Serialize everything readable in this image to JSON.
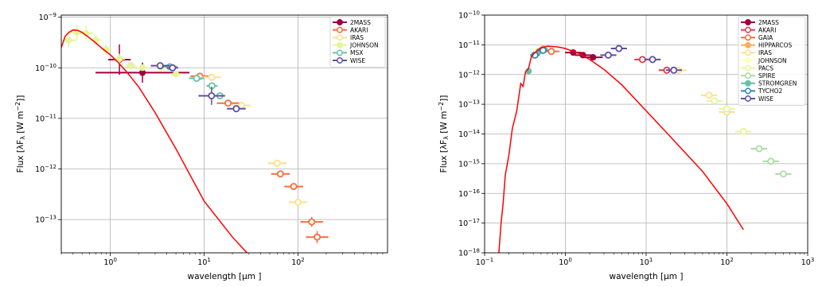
{
  "chart_data": [
    {
      "type": "scatter",
      "xlabel": "wavelength [μm ]",
      "ylabel": "Flux [λF_λ [W  m^−2]]",
      "xscale": "log",
      "yscale": "log",
      "xlim": [
        0.3,
        900
      ],
      "ylim": [
        2.2e-14,
        1.1e-09
      ],
      "x_ticks": [
        {
          "v": 1,
          "t": "10^0"
        },
        {
          "v": 10,
          "t": "10^1"
        },
        {
          "v": 100,
          "t": "10^2"
        }
      ],
      "y_ticks": [
        {
          "v": 1e-09,
          "t": "10^−9"
        },
        {
          "v": 1e-10,
          "t": "10^−10"
        },
        {
          "v": 1e-11,
          "t": "10^−11"
        },
        {
          "v": 1e-12,
          "t": "10^−12"
        },
        {
          "v": 1e-13,
          "t": "10^−13"
        }
      ],
      "grid": true,
      "legend_position": "top-right",
      "legend": [
        "2MASS",
        "AKARI",
        "IRAS",
        "JOHNSON",
        "MSX",
        "WISE"
      ],
      "colors": {
        "2MASS": "#9e0142",
        "AKARI": "#f46d43",
        "IRAS": "#fee08b",
        "JOHNSON": "#e6f598",
        "MSX": "#66c2a5",
        "WISE": "#5e4fa2",
        "model": "#ff0000"
      },
      "model_line": [
        [
          0.3,
          2.5e-10
        ],
        [
          0.33,
          4.2e-10
        ],
        [
          0.36,
          5e-10
        ],
        [
          0.4,
          5.6e-10
        ],
        [
          0.45,
          5.5e-10
        ],
        [
          0.5,
          5e-10
        ],
        [
          0.6,
          3.9e-10
        ],
        [
          0.7,
          3.1e-10
        ],
        [
          0.8,
          2.5e-10
        ],
        [
          1.0,
          1.8e-10
        ],
        [
          1.2,
          1.3e-10
        ],
        [
          1.5,
          8.2e-11
        ],
        [
          2.0,
          4.2e-11
        ],
        [
          3.0,
          1.3e-11
        ],
        [
          5.0,
          2.5e-12
        ],
        [
          10.0,
          2.3e-13
        ],
        [
          20.0,
          4.5e-14
        ],
        [
          30.0,
          2e-14
        ]
      ],
      "series": [
        {
          "name": "2MASS",
          "marker": "filled",
          "points": [
            [
              1.25,
              1.45e-10,
              0.12,
              0.3
            ],
            [
              1.65,
              1.1e-10,
              0,
              0
            ],
            [
              2.2,
              8e-11,
              0.5,
              0.2
            ]
          ]
        },
        {
          "name": "AKARI",
          "marker": "open",
          "points": [
            [
              9,
              6.8e-11,
              0.1,
              0.05
            ],
            [
              18,
              2e-11,
              0.12,
              0.05
            ],
            [
              65,
              8e-13,
              0.1,
              0.05
            ],
            [
              90,
              4.5e-13,
              0.1,
              0.05
            ],
            [
              140,
              9e-14,
              0.12,
              0.1
            ],
            [
              160,
              4.5e-14,
              0.12,
              0.12
            ]
          ]
        },
        {
          "name": "IRAS",
          "marker": "open",
          "points": [
            [
              12,
              6.5e-11,
              0.1,
              0.05
            ],
            [
              25,
              1.8e-11,
              0.1,
              0.05
            ],
            [
              60,
              1.3e-12,
              0.1,
              0.05
            ],
            [
              100,
              2.2e-13,
              0.1,
              0.05
            ]
          ]
        },
        {
          "name": "JOHNSON",
          "marker": "filled",
          "points": [
            [
              0.36,
              3.5e-10,
              0.08,
              0.15
            ],
            [
              0.44,
              5e-10,
              0.08,
              0.15
            ],
            [
              0.55,
              4.8e-10,
              0.08,
              0.15
            ],
            [
              0.7,
              3.5e-10,
              0.06,
              0.1
            ],
            [
              0.9,
              2.3e-10,
              0.06,
              0.1
            ],
            [
              1.25,
              1.5e-10,
              0.06,
              0.1
            ],
            [
              1.65,
              1.1e-10,
              0.06,
              0.05
            ],
            [
              2.2,
              1e-10,
              0.06,
              0.05
            ],
            [
              3.5,
              1e-10,
              0.06,
              0.05
            ],
            [
              5.0,
              7.5e-11,
              0.06,
              0.05
            ]
          ]
        },
        {
          "name": "MSX",
          "marker": "open",
          "points": [
            [
              4.3,
              1.05e-10,
              0.08,
              0.05
            ],
            [
              8.3,
              6.2e-11,
              0.08,
              0.05
            ],
            [
              12.1,
              4.4e-11,
              0.06,
              0.05
            ],
            [
              14.7,
              2.8e-11,
              0.06,
              0.05
            ]
          ]
        },
        {
          "name": "WISE",
          "marker": "open",
          "points": [
            [
              3.4,
              1.1e-10,
              0.1,
              0.05
            ],
            [
              4.6,
              1e-10,
              0.06,
              0.05
            ],
            [
              12,
              2.8e-11,
              0.14,
              0.18
            ],
            [
              22,
              1.55e-11,
              0.1,
              0.05
            ]
          ]
        }
      ]
    },
    {
      "type": "scatter",
      "xlabel": "wavelength [μm ]",
      "ylabel": "Flux [λF_λ [W  m^−2]]",
      "xscale": "log",
      "yscale": "log",
      "xlim": [
        0.1,
        1000
      ],
      "ylim": [
        1e-18,
        1e-10
      ],
      "x_ticks": [
        {
          "v": 0.1,
          "t": "10^−1"
        },
        {
          "v": 1,
          "t": "10^0"
        },
        {
          "v": 10,
          "t": "10^1"
        },
        {
          "v": 100,
          "t": "10^2"
        },
        {
          "v": 1000,
          "t": "10^3"
        }
      ],
      "y_ticks": [
        {
          "v": 1e-10,
          "t": "10^−10"
        },
        {
          "v": 1e-11,
          "t": "10^−11"
        },
        {
          "v": 1e-12,
          "t": "10^−12"
        },
        {
          "v": 1e-13,
          "t": "10^−13"
        },
        {
          "v": 1e-14,
          "t": "10^−14"
        },
        {
          "v": 1e-15,
          "t": "10^−15"
        },
        {
          "v": 1e-16,
          "t": "10^−16"
        },
        {
          "v": 1e-17,
          "t": "10^−17"
        },
        {
          "v": 1e-18,
          "t": "10^−18"
        }
      ],
      "grid": true,
      "legend_position": "top-right",
      "legend": [
        "2MASS",
        "AKARI",
        "GAIA",
        "HIPPARCOS",
        "IRAS",
        "JOHNSON",
        "PACS",
        "SPIRE",
        "STROMGREN",
        "TYCHO2",
        "WISE"
      ],
      "colors": {
        "2MASS": "#9e0142",
        "AKARI": "#d53e4f",
        "GAIA": "#f46d43",
        "HIPPARCOS": "#fdae61",
        "IRAS": "#fee08b",
        "JOHNSON": "#ffffbf",
        "PACS": "#e6f598",
        "SPIRE": "#abdda4",
        "STROMGREN": "#66c2a5",
        "TYCHO2": "#3288bd",
        "WISE": "#5e4fa2",
        "model": "#ff0000"
      },
      "model_line": [
        [
          0.15,
          1e-18
        ],
        [
          0.16,
          1e-17
        ],
        [
          0.17,
          5e-17
        ],
        [
          0.18,
          4e-16
        ],
        [
          0.2,
          2e-15
        ],
        [
          0.22,
          1.5e-14
        ],
        [
          0.25,
          6e-14
        ],
        [
          0.28,
          5e-13
        ],
        [
          0.3,
          4e-13
        ],
        [
          0.32,
          1.2e-12
        ],
        [
          0.35,
          1.6e-12
        ],
        [
          0.38,
          4e-12
        ],
        [
          0.42,
          5.5e-12
        ],
        [
          0.5,
          8e-12
        ],
        [
          0.6,
          9e-12
        ],
        [
          0.8,
          8.5e-12
        ],
        [
          1.0,
          7.5e-12
        ],
        [
          1.5,
          5e-12
        ],
        [
          2.0,
          3.2e-12
        ],
        [
          3.0,
          1.5e-12
        ],
        [
          5.0,
          4.5e-13
        ],
        [
          10,
          6e-14
        ],
        [
          20,
          8e-15
        ],
        [
          50,
          5.5e-16
        ],
        [
          100,
          4.5e-17
        ],
        [
          160,
          6e-18
        ]
      ],
      "series": [
        {
          "name": "2MASS",
          "marker": "filled",
          "points": [
            [
              1.25,
              5.5e-12,
              0.1,
              0.06
            ],
            [
              1.65,
              4.5e-12,
              0.1,
              0.06
            ],
            [
              2.2,
              3.8e-12,
              0.12,
              0.06
            ]
          ]
        },
        {
          "name": "AKARI",
          "marker": "open",
          "points": [
            [
              9,
              3.2e-12,
              0.1,
              0.06
            ],
            [
              18,
              1.4e-12,
              0.1,
              0.06
            ]
          ]
        },
        {
          "name": "GAIA",
          "marker": "open",
          "points": [
            [
              0.67,
              6e-12,
              0.1,
              0.06
            ]
          ]
        },
        {
          "name": "HIPPARCOS",
          "marker": "filled",
          "points": [
            [
              0.53,
              7.5e-12,
              0.06,
              0.06
            ]
          ]
        },
        {
          "name": "IRAS",
          "marker": "open",
          "points": [
            [
              12,
              3.2e-12,
              0.1,
              0.06
            ],
            [
              25,
              1.4e-12,
              0.1,
              0.06
            ],
            [
              60,
              2e-13,
              0.1,
              0.06
            ],
            [
              100,
              5.5e-14,
              0.1,
              0.06
            ]
          ]
        },
        {
          "name": "JOHNSON",
          "marker": "filled",
          "points": [
            [
              0.44,
              6.2e-12,
              0.04,
              0.06
            ],
            [
              0.55,
              7e-12,
              0.04,
              0.06
            ]
          ]
        },
        {
          "name": "PACS",
          "marker": "open",
          "points": [
            [
              70,
              1.3e-13,
              0.1,
              0.06
            ],
            [
              100,
              7e-14,
              0.1,
              0.06
            ],
            [
              160,
              1.2e-14,
              0.1,
              0.06
            ]
          ]
        },
        {
          "name": "SPIRE",
          "marker": "open",
          "points": [
            [
              250,
              3.2e-15,
              0.1,
              0.06
            ],
            [
              350,
              1.2e-15,
              0.1,
              0.06
            ],
            [
              500,
              4.5e-16,
              0.1,
              0.06
            ]
          ]
        },
        {
          "name": "STROMGREN",
          "marker": "filled",
          "points": [
            [
              0.35,
              1.3e-12,
              0.03,
              0.12
            ],
            [
              0.41,
              4.5e-12,
              0.03,
              0.1
            ],
            [
              0.47,
              6e-12,
              0.03,
              0.06
            ],
            [
              0.55,
              6.8e-12,
              0.03,
              0.06
            ]
          ]
        },
        {
          "name": "TYCHO2",
          "marker": "open",
          "points": [
            [
              0.42,
              4.5e-12,
              0.06,
              0.06
            ],
            [
              0.53,
              6.5e-12,
              0.06,
              0.06
            ]
          ]
        },
        {
          "name": "WISE",
          "marker": "open",
          "points": [
            [
              3.4,
              4.5e-12,
              0.1,
              0.06
            ],
            [
              4.6,
              7.5e-12,
              0.1,
              0.06
            ],
            [
              12,
              3.2e-12,
              0.1,
              0.06
            ],
            [
              22,
              1.4e-12,
              0.1,
              0.06
            ]
          ]
        }
      ]
    }
  ]
}
